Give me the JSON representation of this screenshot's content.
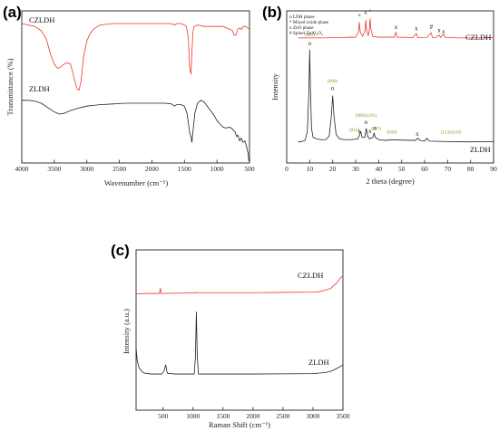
{
  "colors": {
    "red": "#e8392f",
    "black": "#222222",
    "hkl_green": "#7a9a14",
    "axis": "#222222"
  },
  "chart_data": [
    {
      "panel": "(a)",
      "type": "line",
      "title": "",
      "xlabel": "Wavenumber (cm⁻¹)",
      "ylabel": "Transmittance (%)",
      "xlim": [
        4000,
        500
      ],
      "x_reversed": true,
      "xticks": [
        4000,
        3500,
        3000,
        2500,
        2000,
        1500,
        1000,
        500
      ],
      "yticks_shown": false,
      "ylim": [
        0,
        100
      ],
      "series": [
        {
          "name": "CZLDH",
          "color": "#e8392f",
          "points": [
            [
              4000,
              95
            ],
            [
              3900,
              94
            ],
            [
              3800,
              93
            ],
            [
              3700,
              90
            ],
            [
              3620,
              84
            ],
            [
              3560,
              74
            ],
            [
              3500,
              67
            ],
            [
              3450,
              64
            ],
            [
              3400,
              65
            ],
            [
              3350,
              67
            ],
            [
              3300,
              68
            ],
            [
              3250,
              67
            ],
            [
              3200,
              58
            ],
            [
              3150,
              50
            ],
            [
              3120,
              49
            ],
            [
              3090,
              55
            ],
            [
              3050,
              72
            ],
            [
              3000,
              83
            ],
            [
              2950,
              88
            ],
            [
              2900,
              91
            ],
            [
              2800,
              94
            ],
            [
              2600,
              95
            ],
            [
              2400,
              95
            ],
            [
              2200,
              95
            ],
            [
              2000,
              95
            ],
            [
              1800,
              95
            ],
            [
              1700,
              95
            ],
            [
              1650,
              94
            ],
            [
              1620,
              95
            ],
            [
              1550,
              95
            ],
            [
              1500,
              94
            ],
            [
              1470,
              93
            ],
            [
              1440,
              85
            ],
            [
              1420,
              65
            ],
            [
              1400,
              60
            ],
            [
              1390,
              70
            ],
            [
              1370,
              89
            ],
            [
              1350,
              93
            ],
            [
              1300,
              94
            ],
            [
              1200,
              93
            ],
            [
              1100,
              93
            ],
            [
              1000,
              93
            ],
            [
              900,
              93
            ],
            [
              870,
              92
            ],
            [
              850,
              92
            ],
            [
              800,
              91
            ],
            [
              760,
              90
            ],
            [
              740,
              87
            ],
            [
              710,
              87
            ],
            [
              680,
              91
            ],
            [
              650,
              92
            ],
            [
              620,
              91
            ],
            [
              600,
              93
            ],
            [
              560,
              93
            ],
            [
              530,
              92
            ],
            [
              500,
              91
            ]
          ]
        },
        {
          "name": "ZLDH",
          "color": "#222222",
          "points": [
            [
              4000,
              42
            ],
            [
              3900,
              42
            ],
            [
              3800,
              41.5
            ],
            [
              3700,
              40
            ],
            [
              3600,
              37
            ],
            [
              3500,
              34
            ],
            [
              3420,
              32.5
            ],
            [
              3350,
              33
            ],
            [
              3250,
              35
            ],
            [
              3100,
              37
            ],
            [
              3000,
              38
            ],
            [
              2900,
              38.5
            ],
            [
              2800,
              39
            ],
            [
              2600,
              39.5
            ],
            [
              2400,
              40
            ],
            [
              2200,
              40
            ],
            [
              2000,
              40
            ],
            [
              1800,
              40
            ],
            [
              1700,
              39.5
            ],
            [
              1650,
              38
            ],
            [
              1620,
              39
            ],
            [
              1550,
              39
            ],
            [
              1500,
              38
            ],
            [
              1460,
              33
            ],
            [
              1420,
              20
            ],
            [
              1400,
              17
            ],
            [
              1385,
              13
            ],
            [
              1370,
              20
            ],
            [
              1340,
              33
            ],
            [
              1300,
              40
            ],
            [
              1250,
              42
            ],
            [
              1200,
              41
            ],
            [
              1150,
              38
            ],
            [
              1100,
              35
            ],
            [
              1050,
              32
            ],
            [
              1000,
              28
            ],
            [
              960,
              26
            ],
            [
              920,
              24
            ],
            [
              880,
              23
            ],
            [
              850,
              23
            ],
            [
              800,
              23.5
            ],
            [
              760,
              22
            ],
            [
              720,
              20
            ],
            [
              700,
              17
            ],
            [
              680,
              18
            ],
            [
              650,
              14
            ],
            [
              630,
              16
            ],
            [
              600,
              13
            ],
            [
              570,
              14
            ],
            [
              545,
              10
            ],
            [
              520,
              5
            ],
            [
              510,
              0
            ]
          ]
        }
      ]
    },
    {
      "panel": "(b)",
      "type": "line",
      "title": "",
      "xlabel": "2 theta (degree)",
      "ylabel": "Intensity",
      "xlim": [
        0,
        90
      ],
      "xticks": [
        0,
        10,
        20,
        30,
        40,
        50,
        60,
        70,
        80,
        90
      ],
      "yticks_shown": false,
      "ylim": [
        0,
        100
      ],
      "legend": {
        "placement": "top-left",
        "entries": [
          "o LDH phase",
          "* Mixed oxide phase",
          "x ZnO phase",
          "# Spinel ZnAl₂O₄"
        ]
      },
      "series": [
        {
          "name": "CZLDH",
          "color": "#e8392f",
          "points": [
            [
              5,
              83
            ],
            [
              15,
              83
            ],
            [
              25,
              83.3
            ],
            [
              28,
              83.5
            ],
            [
              30,
              83.4
            ],
            [
              31.2,
              87
            ],
            [
              31.6,
              93.5
            ],
            [
              32,
              87
            ],
            [
              33,
              84
            ],
            [
              34.1,
              88
            ],
            [
              34.4,
              95
            ],
            [
              34.8,
              88
            ],
            [
              35.5,
              84.5
            ],
            [
              36,
              89
            ],
            [
              36.3,
              96
            ],
            [
              36.6,
              89
            ],
            [
              37.5,
              84
            ],
            [
              40,
              83.5
            ],
            [
              46.8,
              83.5
            ],
            [
              47.5,
              87
            ],
            [
              48,
              83.5
            ],
            [
              55,
              83.3
            ],
            [
              56.4,
              86
            ],
            [
              57,
              83.3
            ],
            [
              61,
              83.4
            ],
            [
              62.8,
              86.5
            ],
            [
              63.4,
              83.4
            ],
            [
              65,
              83.3
            ],
            [
              66.2,
              85
            ],
            [
              67,
              83.3
            ],
            [
              68.2,
              85.5
            ],
            [
              69,
              83.3
            ],
            [
              75,
              83
            ],
            [
              82,
              83
            ],
            [
              90,
              83.2
            ]
          ]
        },
        {
          "name": "ZLDH",
          "color": "#222222",
          "points": [
            [
              5,
              13
            ],
            [
              6,
              13
            ],
            [
              7,
              13.5
            ],
            [
              8,
              14
            ],
            [
              9,
              20
            ],
            [
              9.7,
              50
            ],
            [
              10,
              75
            ],
            [
              10.3,
              50
            ],
            [
              10.8,
              22
            ],
            [
              11.5,
              16
            ],
            [
              13,
              15
            ],
            [
              15,
              14.5
            ],
            [
              17,
              14.5
            ],
            [
              18.5,
              17
            ],
            [
              19.4,
              30
            ],
            [
              20,
              44
            ],
            [
              20.6,
              30
            ],
            [
              21.5,
              18
            ],
            [
              23,
              15
            ],
            [
              25,
              14.5
            ],
            [
              28,
              14.5
            ],
            [
              31,
              15
            ],
            [
              32.2,
              20
            ],
            [
              32.8,
              16
            ],
            [
              34,
              16
            ],
            [
              34.6,
              22
            ],
            [
              35.2,
              17
            ],
            [
              36,
              15
            ],
            [
              37.5,
              16
            ],
            [
              38,
              19
            ],
            [
              38.6,
              16
            ],
            [
              40,
              14.5
            ],
            [
              43,
              14
            ],
            [
              45,
              14.3
            ],
            [
              47,
              14.3
            ],
            [
              56,
              14
            ],
            [
              57,
              15.5
            ],
            [
              58,
              14
            ],
            [
              60,
              13.5
            ],
            [
              61,
              15.5
            ],
            [
              62,
              13.5
            ],
            [
              70,
              13.2
            ],
            [
              80,
              13
            ],
            [
              90,
              13.2
            ]
          ]
        }
      ],
      "annotations_black": [
        {
          "text": "o",
          "x": 10,
          "y": 78
        },
        {
          "text": "o",
          "x": 20,
          "y": 48
        },
        {
          "text": "x",
          "x": 31.6,
          "y": 19
        },
        {
          "text": "o",
          "x": 34.5,
          "y": 25
        },
        {
          "text": "x",
          "x": 36.2,
          "y": 19
        },
        {
          "text": "o",
          "x": 38.3,
          "y": 21
        },
        {
          "text": "x",
          "x": 56.8,
          "y": 17
        },
        {
          "text": "+",
          "x": 31.6,
          "y": 97
        },
        {
          "text": "x",
          "x": 34.3,
          "y": 99
        },
        {
          "text": "+",
          "x": 36.3,
          "y": 100
        },
        {
          "text": "x",
          "x": 47.5,
          "y": 89
        },
        {
          "text": "x",
          "x": 56.4,
          "y": 88
        },
        {
          "text": "#",
          "x": 62.9,
          "y": 89
        },
        {
          "text": "x",
          "x": 66.3,
          "y": 87
        },
        {
          "text": "x",
          "x": 68.2,
          "y": 86
        }
      ],
      "annotations_hkl": [
        {
          "text": "(003)",
          "x": 10,
          "y": 84
        },
        {
          "text": "(006)",
          "x": 20,
          "y": 53
        },
        {
          "text": "(012)",
          "x": 29.4,
          "y": 20
        },
        {
          "text": "(009)/(101)",
          "x": 34.5,
          "y": 30
        },
        {
          "text": "(015)",
          "x": 39,
          "y": 21
        },
        {
          "text": "(018)",
          "x": 45.8,
          "y": 18.5
        },
        {
          "text": "(113)/(110)",
          "x": 71.5,
          "y": 18.5
        }
      ]
    },
    {
      "panel": "(c)",
      "type": "line",
      "title": "",
      "xlabel": "Raman Shift (cm⁻¹)",
      "ylabel": "Intensity (a.u.)",
      "xlim": [
        50,
        3500
      ],
      "xticks": [
        500,
        1000,
        1500,
        2000,
        2500,
        3000,
        3500
      ],
      "yticks_shown": false,
      "ylim": [
        0,
        100
      ],
      "series": [
        {
          "name": "CZLDH",
          "color": "#e8392f",
          "points": [
            [
              50,
              75
            ],
            [
              200,
              75.2
            ],
            [
              400,
              75.3
            ],
            [
              440,
              75.3
            ],
            [
              455,
              79
            ],
            [
              465,
              75.3
            ],
            [
              800,
              75.5
            ],
            [
              1000,
              75.7
            ],
            [
              1050,
              76
            ],
            [
              1100,
              75.8
            ],
            [
              1500,
              75.8
            ],
            [
              2000,
              75.8
            ],
            [
              2500,
              76
            ],
            [
              3000,
              76.2
            ],
            [
              3100,
              76.5
            ],
            [
              3200,
              77.5
            ],
            [
              3300,
              79
            ],
            [
              3400,
              83
            ],
            [
              3450,
              86
            ],
            [
              3500,
              88
            ]
          ]
        },
        {
          "name": "ZLDH",
          "color": "#222222",
          "points": [
            [
              50,
              36
            ],
            [
              70,
              27
            ],
            [
              100,
              22
            ],
            [
              150,
              19
            ],
            [
              200,
              18
            ],
            [
              300,
              17.5
            ],
            [
              400,
              17.5
            ],
            [
              480,
              17.5
            ],
            [
              520,
              20
            ],
            [
              545,
              24
            ],
            [
              570,
              18
            ],
            [
              700,
              17.5
            ],
            [
              900,
              17.5
            ],
            [
              1020,
              17.5
            ],
            [
              1040,
              30
            ],
            [
              1055,
              62
            ],
            [
              1070,
              30
            ],
            [
              1090,
              17.5
            ],
            [
              1300,
              17.5
            ],
            [
              1600,
              17.5
            ],
            [
              2000,
              17.5
            ],
            [
              2500,
              17.6
            ],
            [
              3000,
              17.8
            ],
            [
              3200,
              18.5
            ],
            [
              3300,
              19.5
            ],
            [
              3400,
              21.5
            ],
            [
              3500,
              24
            ]
          ]
        }
      ]
    }
  ]
}
